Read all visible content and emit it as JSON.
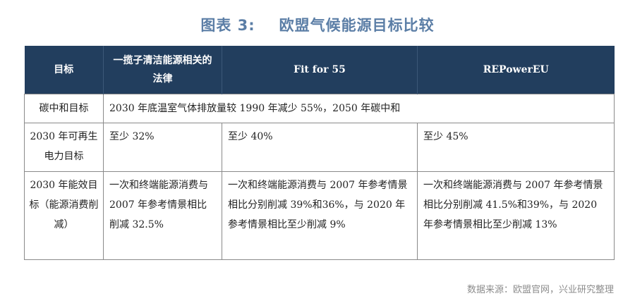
{
  "title": {
    "label": "图表 3:",
    "text": "欧盟气候能源目标比较"
  },
  "table": {
    "headers": [
      "目标",
      "一揽子清洁能源相关的法律",
      "Fit for 55",
      "REPowerEU"
    ],
    "rows": [
      {
        "target": "碳中和目标",
        "merged": "2030 年底温室气体排放量较 1990 年减少 55%，2050 年碳中和"
      },
      {
        "target": "2030 年可再生电力目标",
        "cells": [
          "至少 32%",
          "至少 40%",
          "至少 45%"
        ]
      },
      {
        "target": "2030 年能效目标（能源消费削减）",
        "cells": [
          "一次和终端能源消费与 2007 年参考情景相比削减 32.5%",
          "一次和终端能源消费与 2007 年参考情景相比分别削减 39%和36%，与 2020 年参考情景相比至少削减 9%",
          "一次和终端能源消费与 2007 年参考情景相比分别削减 41.5%和39%，与 2020 年参考情景相比至少削减 13%"
        ]
      }
    ]
  },
  "source": "数据来源：欧盟官网，兴业研究整理",
  "colors": {
    "title": "#5b7ea6",
    "header_bg": "#223e5e",
    "header_text": "#ffffff",
    "border": "#8a8a8a",
    "source_text": "#8c8c8c"
  }
}
